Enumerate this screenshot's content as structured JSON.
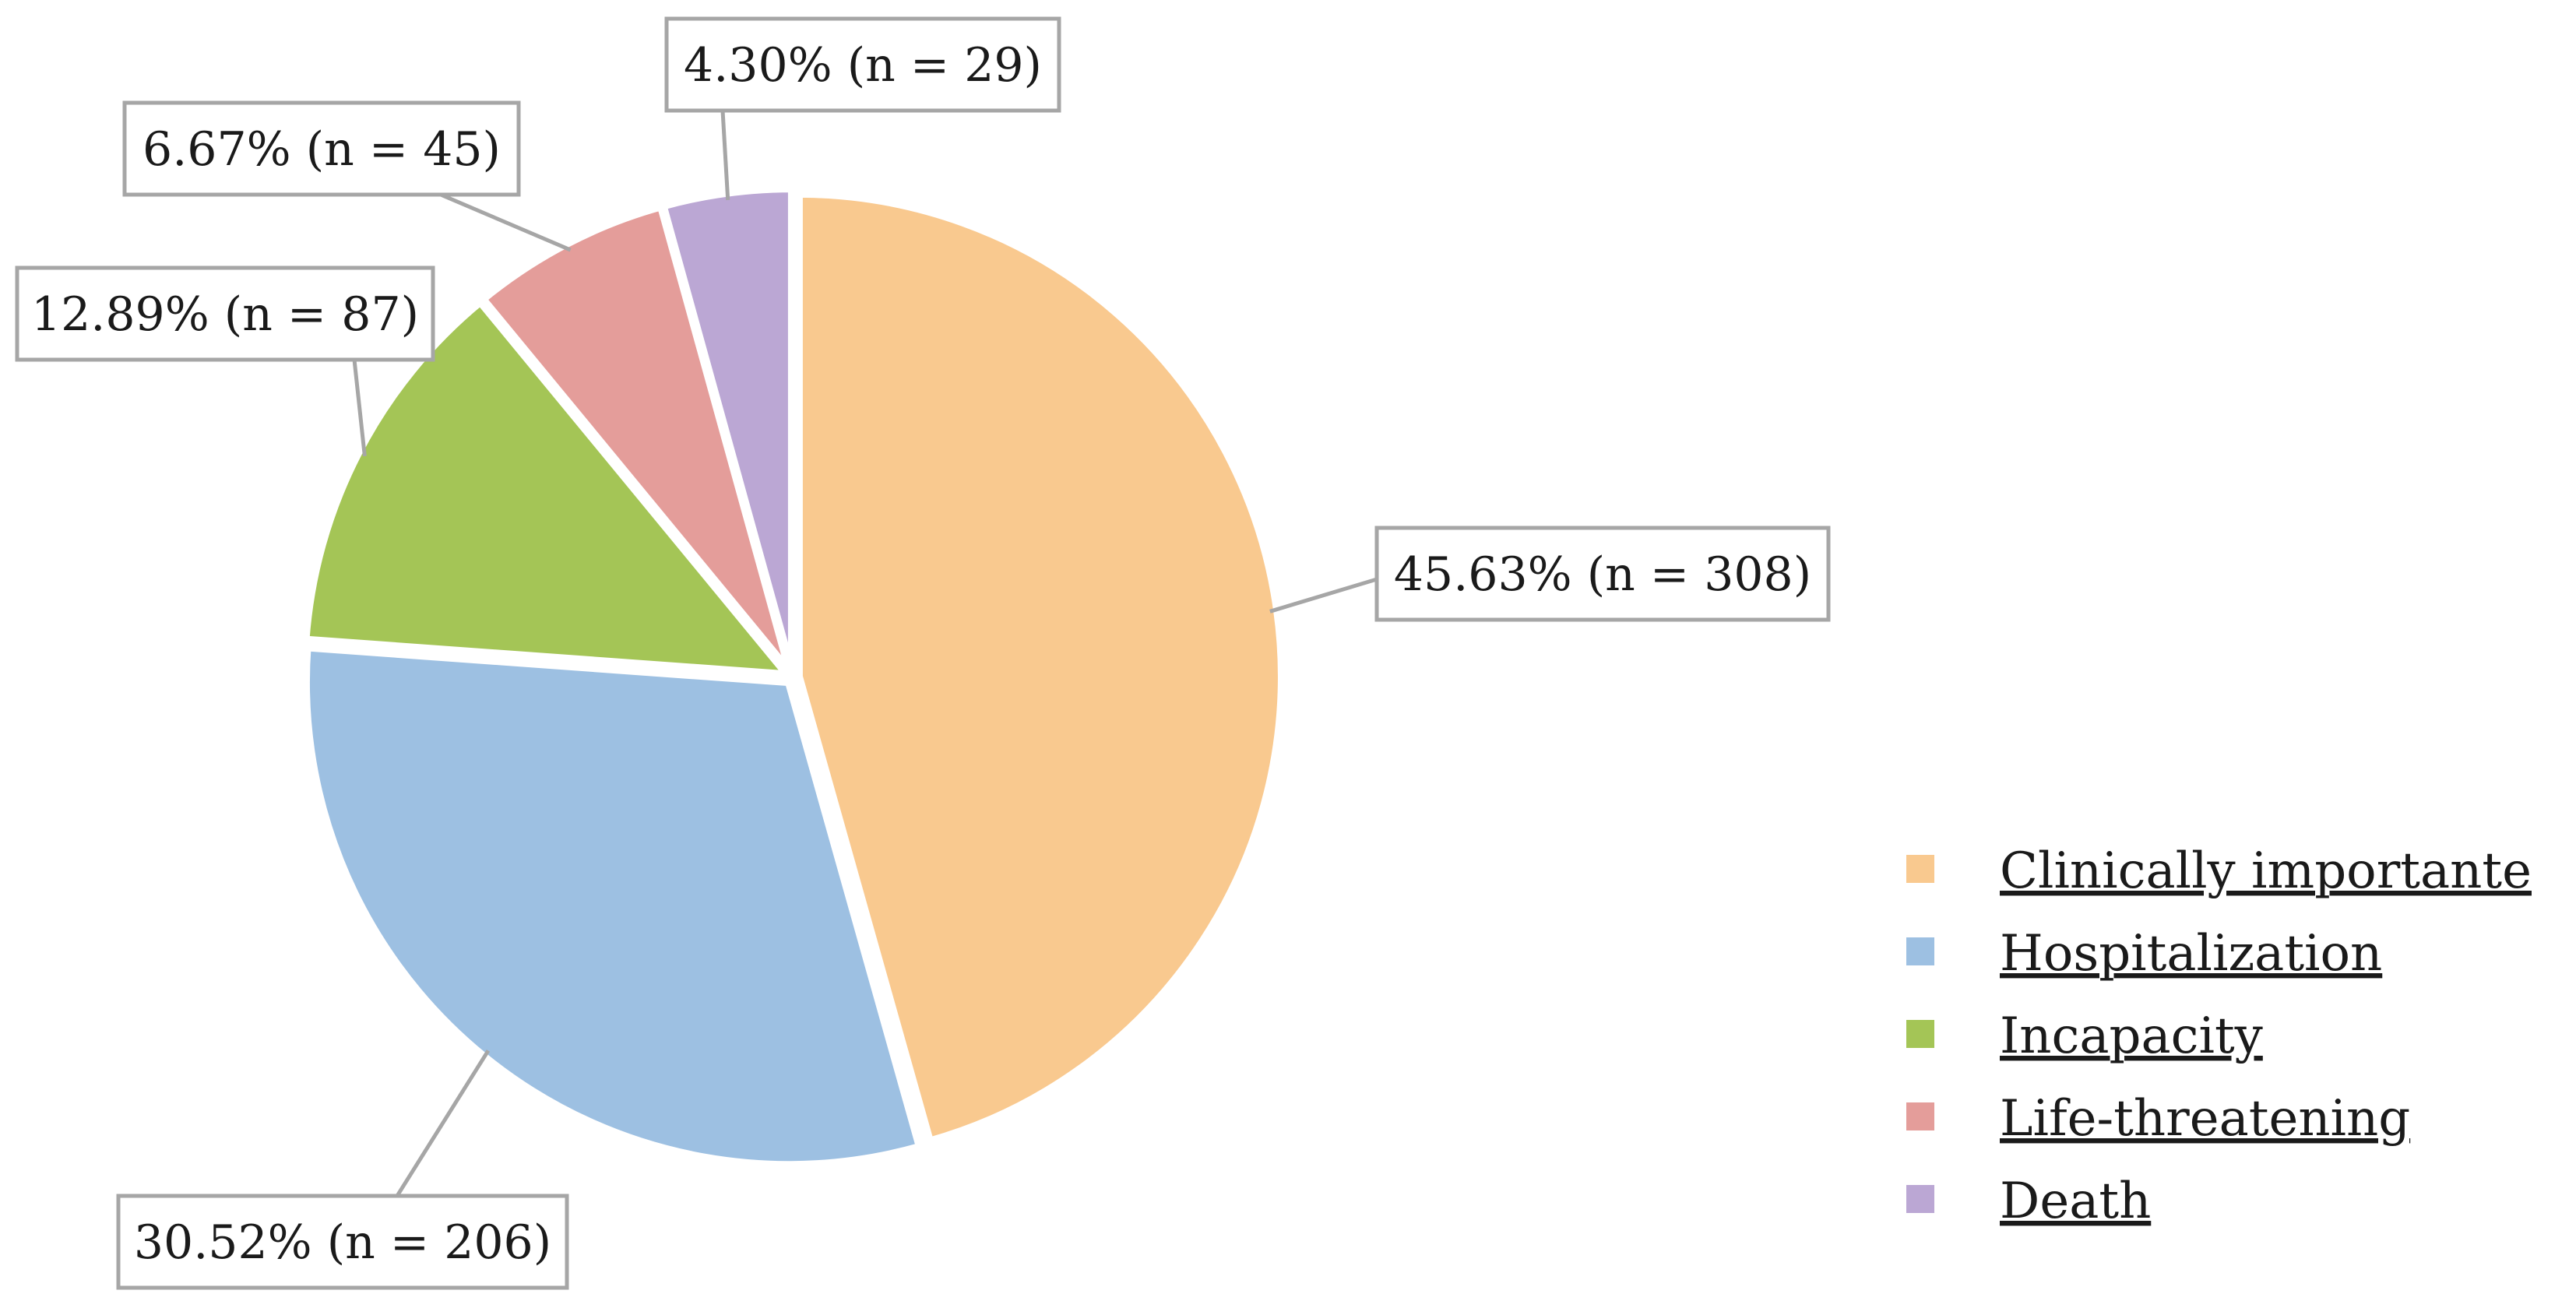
{
  "chart_data": {
    "type": "pie",
    "title": "",
    "legend_position": "bottom-right",
    "slices": [
      {
        "label": "Clinically importante",
        "value": 308,
        "percent": 45.63,
        "display": "45.63% (n = 308)",
        "color": "#f9c98f"
      },
      {
        "label": "Hospitalization",
        "value": 206,
        "percent": 30.52,
        "display": "30.52% (n = 206)",
        "color": "#9dc0e2"
      },
      {
        "label": "Incapacity",
        "value": 87,
        "percent": 12.89,
        "display": "12.89% (n = 87)",
        "color": "#a4c556"
      },
      {
        "label": "Life-threatening",
        "value": 45,
        "percent": 6.67,
        "display": "6.67% (n = 45)",
        "color": "#e49d9a"
      },
      {
        "label": "Death",
        "value": 29,
        "percent": 4.3,
        "display": "4.30% (n = 29)",
        "color": "#bba7d4"
      }
    ]
  }
}
